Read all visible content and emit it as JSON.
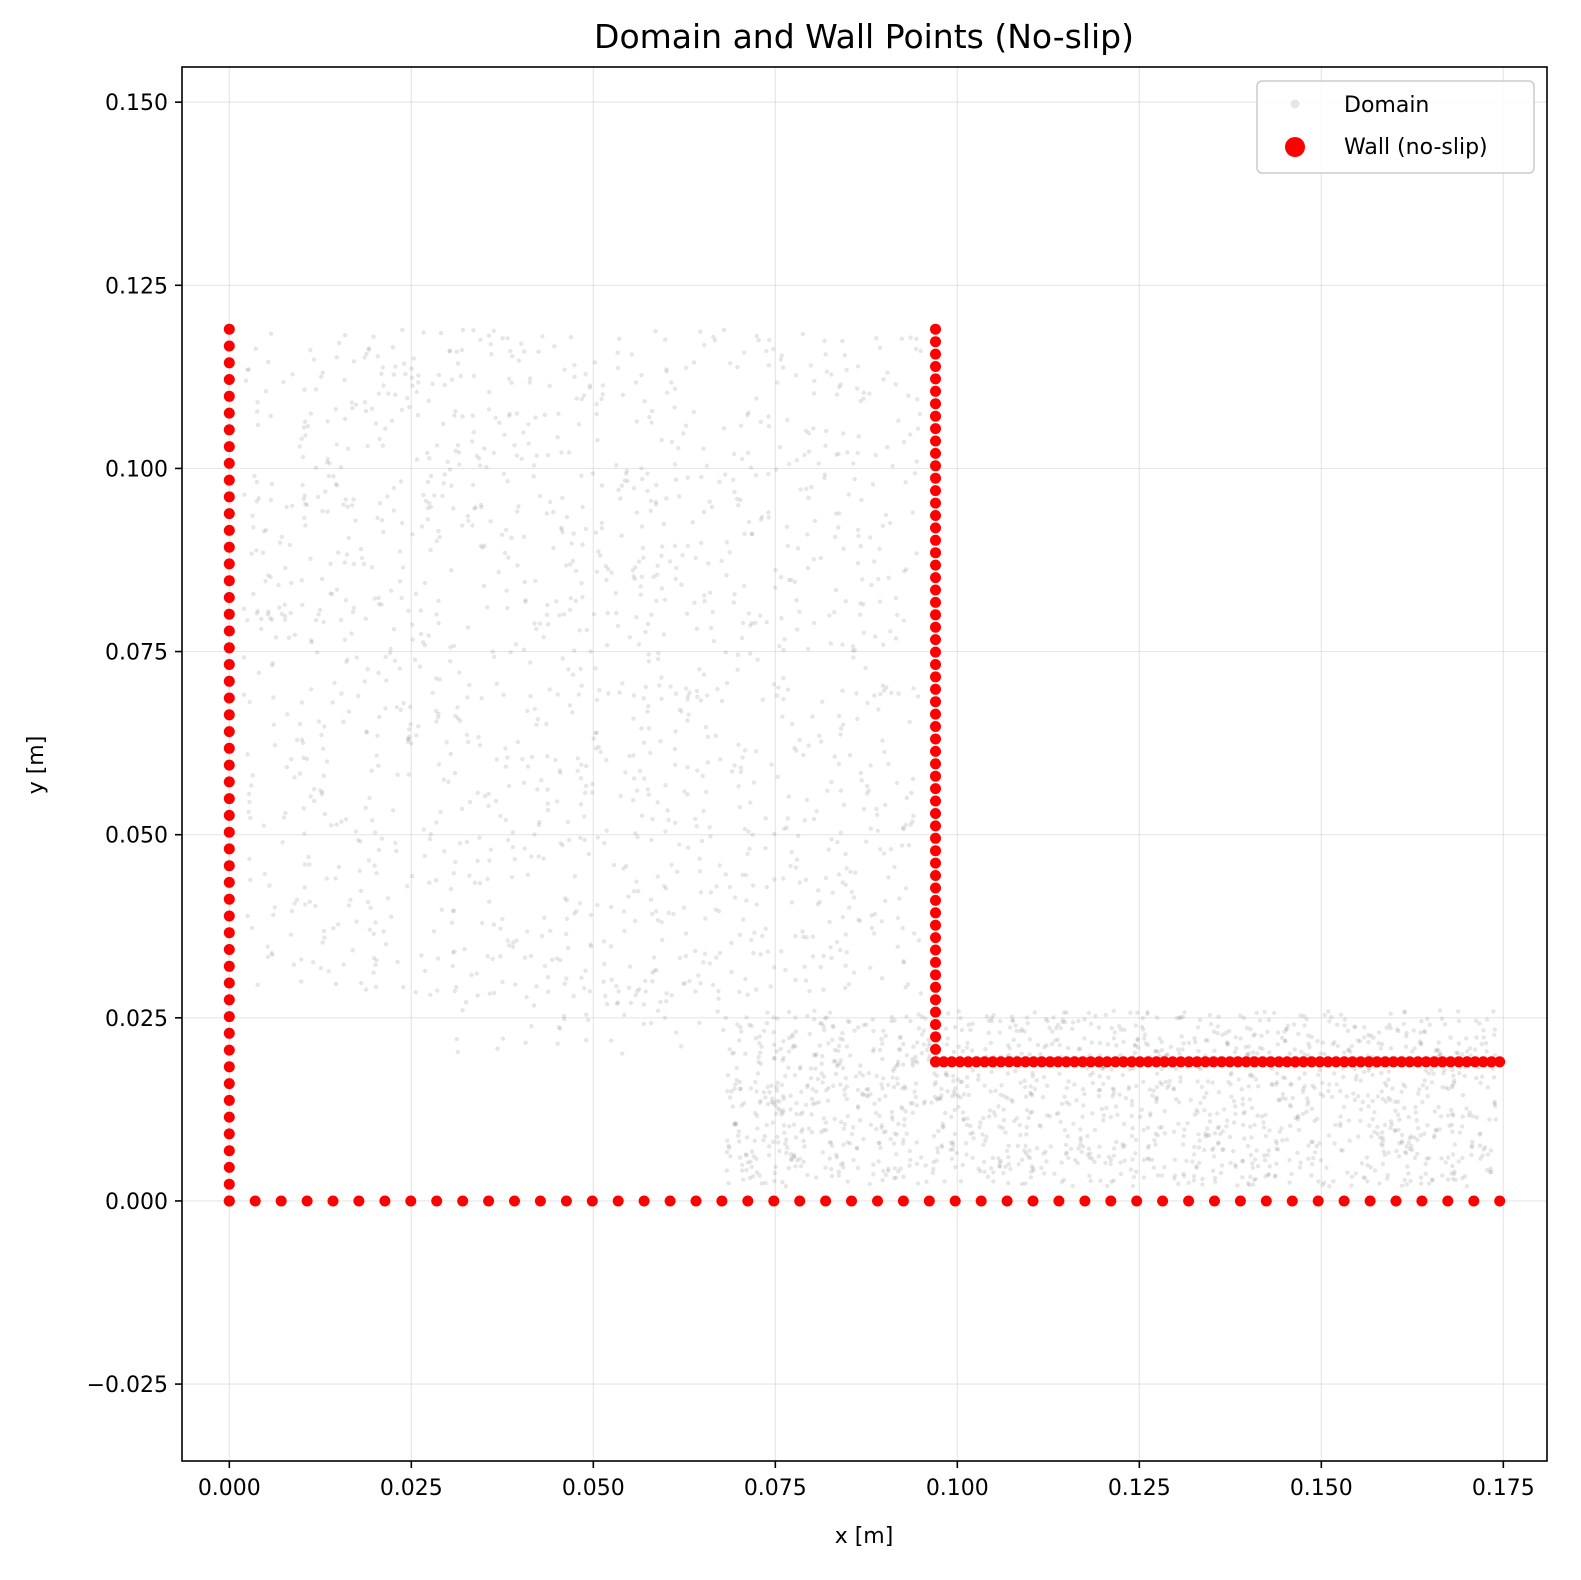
{
  "chart_data": {
    "type": "scatter",
    "title": "Domain and Wall Points (No-slip)",
    "xlabel": "x [m]",
    "ylabel": "y [m]",
    "xlim": [
      -0.0065,
      0.181
    ],
    "ylim": [
      -0.0355,
      0.1548
    ],
    "x_ticks": [
      0.0,
      0.025,
      0.05,
      0.075,
      0.1,
      0.125,
      0.15,
      0.175
    ],
    "x_tick_labels": [
      "0.000",
      "0.025",
      "0.050",
      "0.075",
      "0.100",
      "0.125",
      "0.150",
      "0.175"
    ],
    "y_ticks": [
      -0.025,
      0.0,
      0.025,
      0.05,
      0.075,
      0.1,
      0.125,
      0.15
    ],
    "y_tick_labels": [
      "−0.025",
      "0.000",
      "0.025",
      "0.050",
      "0.075",
      "0.100",
      "0.125",
      "0.150"
    ],
    "grid": true,
    "legend_position": "top-right",
    "series": [
      {
        "name": "Domain",
        "color": "#808080",
        "opacity": 0.2,
        "marker": "small-dot",
        "regions": [
          {
            "x_range": [
              0.002,
              0.095
            ],
            "y_range": [
              0.028,
              0.119
            ],
            "count": 1500
          },
          {
            "x_range": [
              0.068,
              0.174
            ],
            "y_range": [
              0.002,
              0.026
            ],
            "count": 1600
          },
          {
            "x_range": [
              0.03,
              0.068
            ],
            "y_range": [
              0.02,
              0.028
            ],
            "count": 40
          }
        ]
      },
      {
        "name": "Wall (no-slip)",
        "color": "#ff0000",
        "marker": "dot",
        "segments": [
          {
            "from": [
              0.0,
              0.0
            ],
            "to": [
              0.0,
              0.119
            ],
            "points": 53
          },
          {
            "from": [
              0.0,
              0.0
            ],
            "to": [
              0.1745,
              0.0
            ],
            "points": 50
          },
          {
            "from": [
              0.097,
              0.019
            ],
            "to": [
              0.097,
              0.119
            ],
            "points": 60
          },
          {
            "from": [
              0.097,
              0.019
            ],
            "to": [
              0.1745,
              0.019
            ],
            "points": 70
          }
        ]
      }
    ]
  }
}
